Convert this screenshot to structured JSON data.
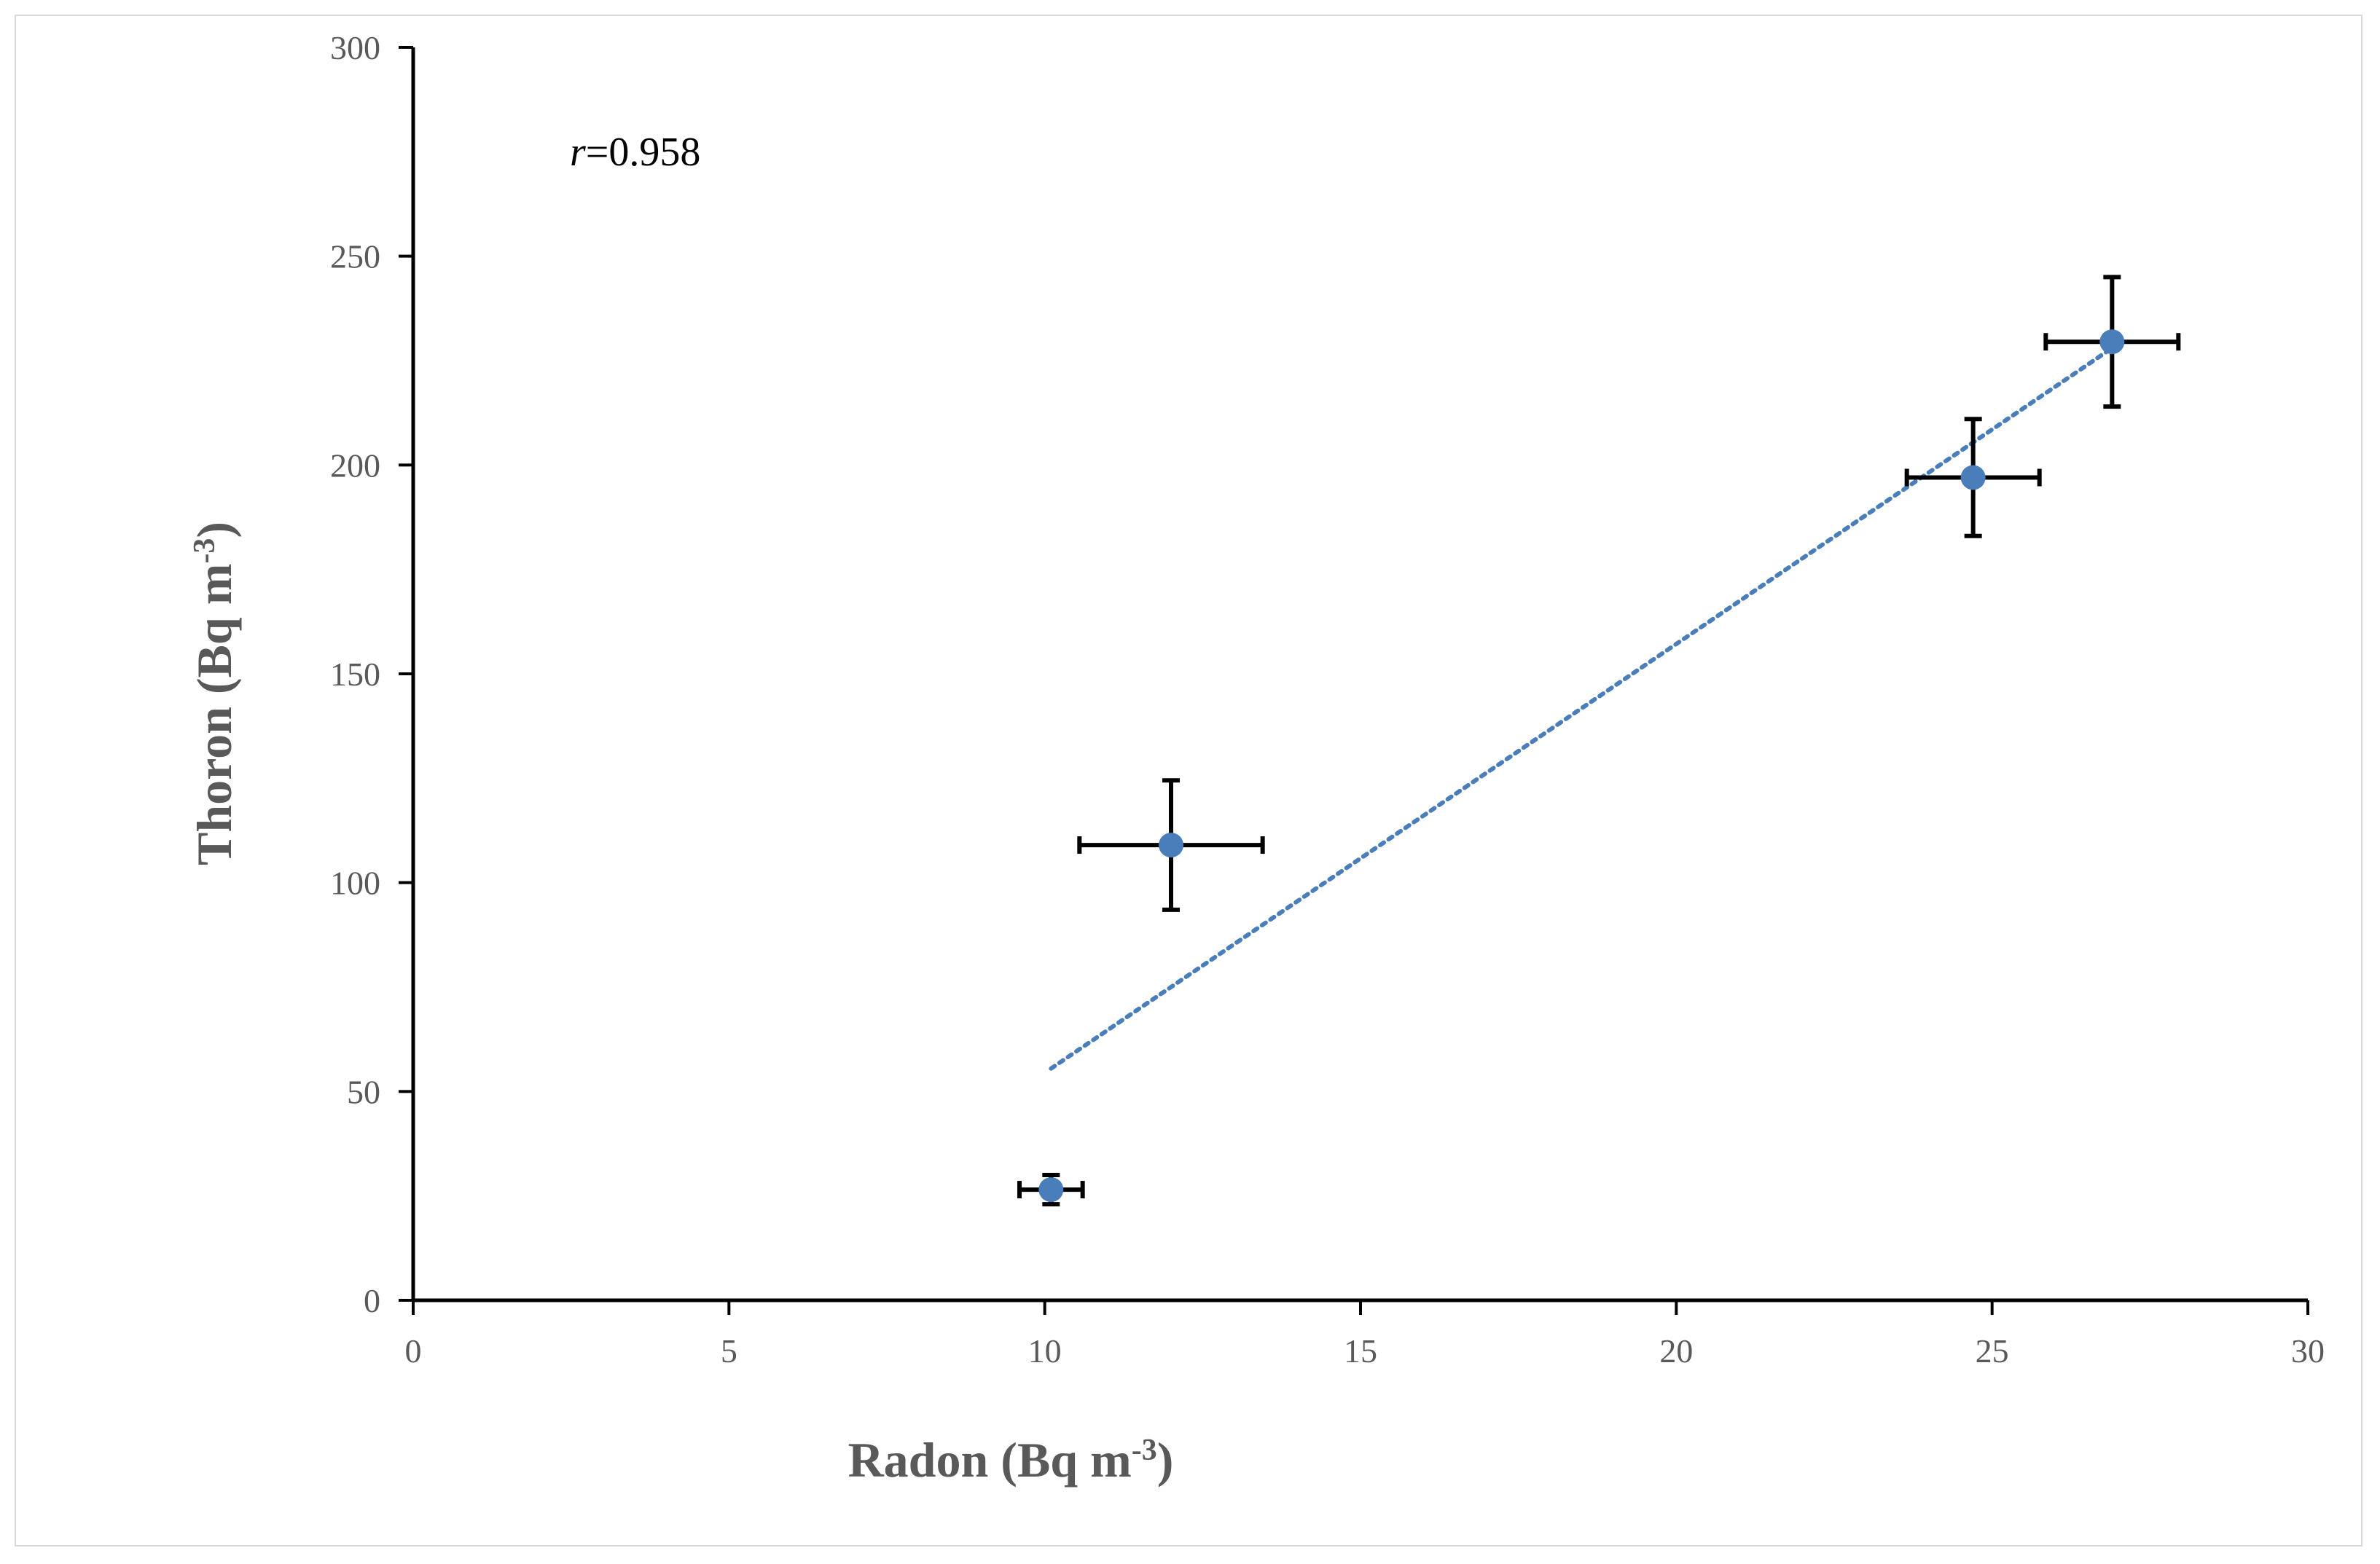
{
  "chart_data": {
    "type": "scatter",
    "title": "",
    "xlabel": {
      "main": "Radon (Bq m",
      "sup": "-3",
      "close": ")"
    },
    "ylabel": {
      "main": "Thoron (Bq m",
      "sup": "-3",
      "close": ")"
    },
    "xlim": [
      0,
      30
    ],
    "ylim": [
      0,
      300
    ],
    "xticks": [
      0,
      5,
      10,
      15,
      20,
      25,
      30
    ],
    "yticks": [
      0,
      50,
      100,
      150,
      200,
      250,
      300
    ],
    "grid": false,
    "legend": "none",
    "marker_color": "#4a7ebb",
    "errorbar_color": "#000000",
    "trendline_color": "#4a7ebb",
    "points": [
      {
        "x": 10.1,
        "y": 26.5,
        "xerr": 0.5,
        "yerr": 3.5
      },
      {
        "x": 12.0,
        "y": 109,
        "xerr": 1.45,
        "yerr": 15.5
      },
      {
        "x": 24.7,
        "y": 197,
        "xerr": 1.05,
        "yerr": 14
      },
      {
        "x": 26.9,
        "y": 229.5,
        "xerr": 1.05,
        "yerr": 15.5
      }
    ],
    "trendline": {
      "style": "dotted",
      "x0": 10.1,
      "y0": 55.5,
      "x1": 26.9,
      "y1": 228
    },
    "annotation": {
      "italic": "r",
      "text": "=0.958"
    }
  }
}
